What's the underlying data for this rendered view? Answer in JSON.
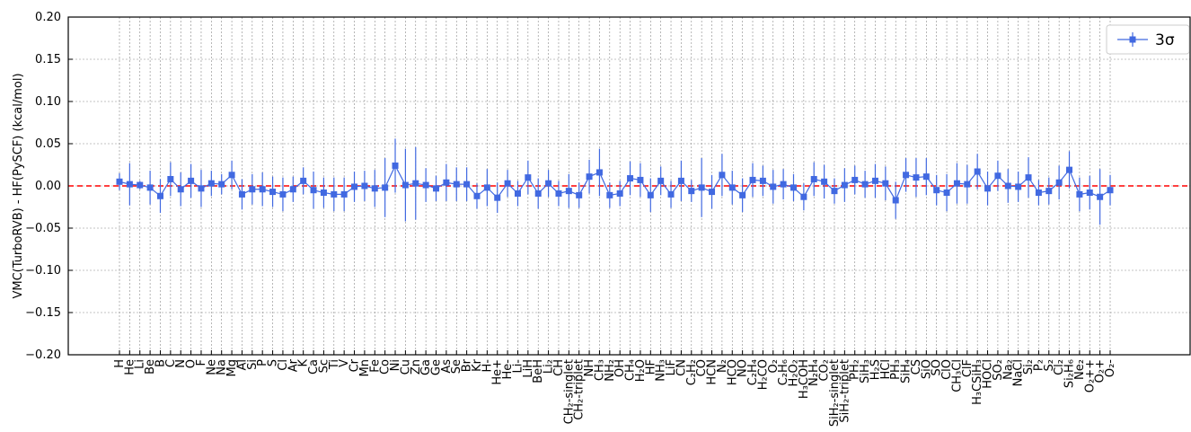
{
  "chart_data": {
    "type": "errorbar",
    "y_label": "VMC(TurboRVB) - HF(PySCF) (kcal/mol)",
    "categories": [
      "H",
      "He",
      "Li",
      "Be",
      "B",
      "C",
      "N",
      "O",
      "F",
      "Ne",
      "Na",
      "Mg",
      "Al",
      "Si",
      "P",
      "S",
      "Cl",
      "Ar",
      "K",
      "Ca",
      "Sc",
      "Ti",
      "V",
      "Cr",
      "Mn",
      "Fe",
      "Co",
      "Ni",
      "Cu",
      "Zn",
      "Ga",
      "Ge",
      "As",
      "Se",
      "Br",
      "Kr",
      "H-",
      "He+",
      "He-",
      "Li-",
      "LiH",
      "BeH",
      "Li₂",
      "CH",
      "CH₂-singlet",
      "CH₂-triplet",
      "NH",
      "CH₃",
      "NH₂",
      "OH",
      "CH₄",
      "H₂O",
      "HF",
      "NH₃",
      "LiF",
      "CN",
      "C₂H₂",
      "CO",
      "HCN",
      "N₂",
      "HCO",
      "NO",
      "C₂H₄",
      "H₂CO",
      "O₂",
      "C₂H₆",
      "H₂O₂",
      "H₃COH",
      "N₂H₄",
      "CO₂",
      "SiH₂-singlet",
      "SiH₂-triplet",
      "PH₂",
      "SiH₃",
      "H₂S",
      "HCl",
      "PH₃",
      "SiH₄",
      "CS",
      "SiO",
      "SO",
      "ClO",
      "CH₃Cl",
      "ClF",
      "H₃CSiH₃",
      "HOCl",
      "SO₂",
      "Na₂",
      "NaCl",
      "Si₂",
      "P₂",
      "S₂",
      "Cl₂",
      "Si₂H₆",
      "Ne₂",
      "O₂++",
      "O₂+",
      "O₂-"
    ],
    "series": [
      {
        "name": "3σ",
        "color": "#4169e1",
        "values": [
          0.005,
          0.002,
          0.001,
          -0.002,
          -0.012,
          0.008,
          -0.004,
          0.006,
          -0.003,
          0.003,
          0.002,
          0.013,
          -0.01,
          -0.004,
          -0.004,
          -0.007,
          -0.01,
          -0.004,
          0.006,
          -0.005,
          -0.008,
          -0.01,
          -0.01,
          -0.001,
          0,
          -0.003,
          -0.002,
          0.024,
          0.001,
          0.003,
          0.001,
          -0.003,
          0.004,
          0.002,
          0.002,
          -0.012,
          -0.002,
          -0.014,
          0.003,
          -0.009,
          0.01,
          -0.009,
          0.003,
          -0.009,
          -0.006,
          -0.011,
          0.011,
          0.016,
          -0.011,
          -0.009,
          0.009,
          0.007,
          -0.011,
          0.006,
          -0.01,
          0.006,
          -0.006,
          -0.002,
          -0.007,
          0.013,
          -0.002,
          -0.011,
          0.007,
          0.006,
          -0.001,
          0.002,
          -0.002,
          -0.013,
          0.008,
          0.005,
          -0.006,
          0.001,
          0.007,
          0.002,
          0.006,
          0.003,
          -0.017,
          0.013,
          0.01,
          0.011,
          -0.005,
          -0.008,
          0.003,
          0.002,
          0.017,
          -0.003,
          0.012,
          0,
          -0.001,
          0.01,
          -0.008,
          -0.006,
          0.004,
          0.019,
          -0.01,
          -0.008,
          -0.013,
          -0.005
        ],
        "errors": [
          0.01,
          0.025,
          0.005,
          0.02,
          0.02,
          0.02,
          0.02,
          0.02,
          0.022,
          0.015,
          0.012,
          0.017,
          0.018,
          0.018,
          0.02,
          0.018,
          0.02,
          0.015,
          0.016,
          0.022,
          0.018,
          0.02,
          0.02,
          0.018,
          0.018,
          0.022,
          0.035,
          0.032,
          0.043,
          0.043,
          0.02,
          0.015,
          0.022,
          0.02,
          0.02,
          0.015,
          0.022,
          0.018,
          0.016,
          0.015,
          0.02,
          0.018,
          0.016,
          0.015,
          0.02,
          0.015,
          0.02,
          0.028,
          0.015,
          0.015,
          0.02,
          0.02,
          0.02,
          0.017,
          0.016,
          0.024,
          0.013,
          0.035,
          0.02,
          0.025,
          0.02,
          0.02,
          0.02,
          0.018,
          0.02,
          0.018,
          0.016,
          0.016,
          0.02,
          0.02,
          0.015,
          0.02,
          0.017,
          0.016,
          0.02,
          0.02,
          0.022,
          0.02,
          0.023,
          0.022,
          0.018,
          0.022,
          0.024,
          0.023,
          0.021,
          0.02,
          0.018,
          0.02,
          0.018,
          0.024,
          0.015,
          0.016,
          0.02,
          0.022,
          0.02,
          0.02,
          0.033,
          0.018
        ]
      }
    ],
    "ylim": [
      -0.2,
      0.2
    ],
    "yticks": [
      {
        "value": -0.2,
        "label": "−0.20"
      },
      {
        "value": -0.15,
        "label": "−0.15"
      },
      {
        "value": -0.1,
        "label": "−0.10"
      },
      {
        "value": -0.05,
        "label": "−0.05"
      },
      {
        "value": 0,
        "label": "0.00"
      },
      {
        "value": 0.05,
        "label": "0.05"
      },
      {
        "value": 0.1,
        "label": "0.10"
      },
      {
        "value": 0.15,
        "label": "0.15"
      },
      {
        "value": 0.2,
        "label": "0.20"
      }
    ],
    "grid": true,
    "hline": {
      "value": 0,
      "color": "#ff0000"
    },
    "legend": "upper right"
  }
}
